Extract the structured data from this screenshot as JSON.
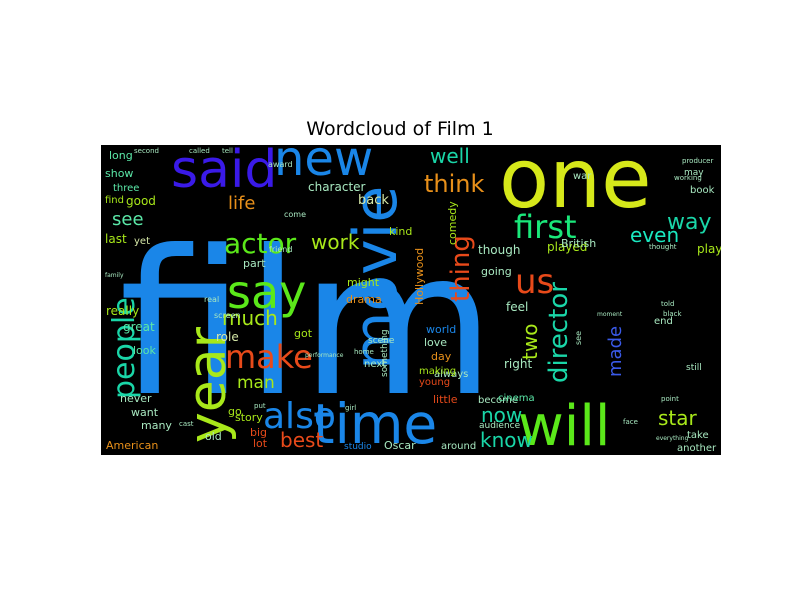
{
  "chart_data": {
    "type": "wordcloud",
    "title": "Wordcloud of Film 1",
    "background": "#000000",
    "words": [
      {
        "text": "film",
        "weight": 1.0,
        "color": "#1a86e8"
      },
      {
        "text": "one",
        "weight": 0.62,
        "color": "#d6e81a"
      },
      {
        "text": "movie",
        "weight": 0.48,
        "color": "#1a86e8"
      },
      {
        "text": "time",
        "weight": 0.45,
        "color": "#1a86e8"
      },
      {
        "text": "will",
        "weight": 0.43,
        "color": "#5be81a"
      },
      {
        "text": "year",
        "weight": 0.42,
        "color": "#a8e81a"
      },
      {
        "text": "said",
        "weight": 0.38,
        "color": "#3a1ae8"
      },
      {
        "text": "new",
        "weight": 0.36,
        "color": "#1a86e8"
      },
      {
        "text": "say",
        "weight": 0.33,
        "color": "#5be81a"
      },
      {
        "text": "also",
        "weight": 0.3,
        "color": "#1a86e8"
      },
      {
        "text": "make",
        "weight": 0.27,
        "color": "#e84a1a"
      },
      {
        "text": "first",
        "weight": 0.26,
        "color": "#1ae87a"
      },
      {
        "text": "us",
        "weight": 0.25,
        "color": "#e84a1a"
      },
      {
        "text": "actor",
        "weight": 0.24,
        "color": "#5be81a"
      },
      {
        "text": "people",
        "weight": 0.24,
        "color": "#1ad6a8"
      },
      {
        "text": "director",
        "weight": 0.22,
        "color": "#1ad6a8"
      },
      {
        "text": "thing",
        "weight": 0.2,
        "color": "#e84a1a"
      },
      {
        "text": "think",
        "weight": 0.19,
        "color": "#e8901a"
      },
      {
        "text": "best",
        "weight": 0.18,
        "color": "#e84a1a"
      },
      {
        "text": "life",
        "weight": 0.17,
        "color": "#e8901a"
      },
      {
        "text": "work",
        "weight": 0.17,
        "color": "#a8e81a"
      },
      {
        "text": "much",
        "weight": 0.17,
        "color": "#a8e81a"
      },
      {
        "text": "well",
        "weight": 0.17,
        "color": "#1ad6a8"
      },
      {
        "text": "way",
        "weight": 0.17,
        "color": "#1ad6a8"
      },
      {
        "text": "even",
        "weight": 0.16,
        "color": "#1ae8c0"
      },
      {
        "text": "two",
        "weight": 0.16,
        "color": "#a8e81a"
      },
      {
        "text": "made",
        "weight": 0.15,
        "color": "#3a5ae8"
      },
      {
        "text": "know",
        "weight": 0.15,
        "color": "#1ad6a8"
      },
      {
        "text": "now",
        "weight": 0.15,
        "color": "#1ad6a8"
      },
      {
        "text": "star",
        "weight": 0.15,
        "color": "#a8e81a"
      },
      {
        "text": "man",
        "weight": 0.14,
        "color": "#a8e81a"
      },
      {
        "text": "see",
        "weight": 0.14,
        "color": "#5be8a8"
      },
      {
        "text": "character",
        "weight": 0.1,
        "color": "#a8e8c0"
      },
      {
        "text": "back",
        "weight": 0.1,
        "color": "#d6e8a8"
      },
      {
        "text": "really",
        "weight": 0.1,
        "color": "#a8e81a"
      },
      {
        "text": "great",
        "weight": 0.1,
        "color": "#5be8a8"
      },
      {
        "text": "look",
        "weight": 0.1,
        "color": "#5be8a8"
      },
      {
        "text": "role",
        "weight": 0.1,
        "color": "#d6e8a8"
      },
      {
        "text": "good",
        "weight": 0.1,
        "color": "#a8e81a"
      },
      {
        "text": "last",
        "weight": 0.1,
        "color": "#a8e81a"
      },
      {
        "text": "long",
        "weight": 0.1,
        "color": "#5be8a8"
      },
      {
        "text": "show",
        "weight": 0.1,
        "color": "#5be8a8"
      },
      {
        "text": "three",
        "weight": 0.09,
        "color": "#5be8a8"
      },
      {
        "text": "find",
        "weight": 0.09,
        "color": "#a8e81a"
      },
      {
        "text": "yet",
        "weight": 0.09,
        "color": "#d6e8a8"
      },
      {
        "text": "part",
        "weight": 0.09,
        "color": "#a8e8c0"
      },
      {
        "text": "got",
        "weight": 0.09,
        "color": "#a8e81a"
      },
      {
        "text": "might",
        "weight": 0.09,
        "color": "#a8e81a"
      },
      {
        "text": "drama",
        "weight": 0.09,
        "color": "#e8901a"
      },
      {
        "text": "kind",
        "weight": 0.09,
        "color": "#a8e81a"
      },
      {
        "text": "though",
        "weight": 0.09,
        "color": "#a8e8c0"
      },
      {
        "text": "going",
        "weight": 0.09,
        "color": "#a8e8c0"
      },
      {
        "text": "feel",
        "weight": 0.09,
        "color": "#a8e8c0"
      },
      {
        "text": "played",
        "weight": 0.09,
        "color": "#a8e81a"
      },
      {
        "text": "play",
        "weight": 0.09,
        "color": "#a8e81a"
      },
      {
        "text": "British",
        "weight": 0.08,
        "color": "#a8e8c0"
      },
      {
        "text": "Hollywood",
        "weight": 0.08,
        "color": "#e8901a"
      },
      {
        "text": "comedy",
        "weight": 0.08,
        "color": "#a8e81a"
      },
      {
        "text": "world",
        "weight": 0.08,
        "color": "#1a86e8"
      },
      {
        "text": "love",
        "weight": 0.08,
        "color": "#a8e8c0"
      },
      {
        "text": "day",
        "weight": 0.08,
        "color": "#e8901a"
      },
      {
        "text": "right",
        "weight": 0.08,
        "color": "#a8e8c0"
      },
      {
        "text": "never",
        "weight": 0.08,
        "color": "#a8e8c0"
      },
      {
        "text": "want",
        "weight": 0.08,
        "color": "#a8e8c0"
      },
      {
        "text": "many",
        "weight": 0.08,
        "color": "#a8e8c0"
      },
      {
        "text": "story",
        "weight": 0.08,
        "color": "#a8e81a"
      },
      {
        "text": "go",
        "weight": 0.08,
        "color": "#a8e81a"
      },
      {
        "text": "old",
        "weight": 0.08,
        "color": "#a8e8c0"
      },
      {
        "text": "big",
        "weight": 0.08,
        "color": "#e84a1a"
      },
      {
        "text": "lot",
        "weight": 0.08,
        "color": "#e84a1a"
      },
      {
        "text": "American",
        "weight": 0.08,
        "color": "#e8901a"
      },
      {
        "text": "Oscar",
        "weight": 0.08,
        "color": "#a8e8c0"
      },
      {
        "text": "around",
        "weight": 0.08,
        "color": "#a8e8c0"
      },
      {
        "text": "little",
        "weight": 0.08,
        "color": "#e84a1a"
      },
      {
        "text": "become",
        "weight": 0.08,
        "color": "#a8e8c0"
      },
      {
        "text": "cinema",
        "weight": 0.08,
        "color": "#5be8a8"
      },
      {
        "text": "audience",
        "weight": 0.07,
        "color": "#a8e8c0"
      },
      {
        "text": "studio",
        "weight": 0.07,
        "color": "#1a86e8"
      },
      {
        "text": "always",
        "weight": 0.08,
        "color": "#a8e8c0"
      },
      {
        "text": "making",
        "weight": 0.08,
        "color": "#a8e81a"
      },
      {
        "text": "young",
        "weight": 0.08,
        "color": "#e84a1a"
      },
      {
        "text": "next",
        "weight": 0.08,
        "color": "#a8e8c0"
      },
      {
        "text": "take",
        "weight": 0.08,
        "color": "#a8e8c0"
      },
      {
        "text": "another",
        "weight": 0.08,
        "color": "#a8e8c0"
      },
      {
        "text": "end",
        "weight": 0.07,
        "color": "#a8e8c0"
      },
      {
        "text": "book",
        "weight": 0.07,
        "color": "#a8e8c0"
      },
      {
        "text": "war",
        "weight": 0.07,
        "color": "#a8e8c0"
      },
      {
        "text": "may",
        "weight": 0.07,
        "color": "#a8e8c0"
      },
      {
        "text": "award",
        "weight": 0.06,
        "color": "#a8e8c0"
      },
      {
        "text": "come",
        "weight": 0.06,
        "color": "#a8e8c0"
      },
      {
        "text": "still",
        "weight": 0.06,
        "color": "#a8e8c0"
      },
      {
        "text": "scene",
        "weight": 0.06,
        "color": "#a8e8c0"
      },
      {
        "text": "something",
        "weight": 0.06,
        "color": "#a8e8c0"
      },
      {
        "text": "real",
        "weight": 0.06,
        "color": "#a8e8c0"
      },
      {
        "text": "screen",
        "weight": 0.06,
        "color": "#a8e8c0"
      },
      {
        "text": "see",
        "weight": 0.06,
        "color": "#a8e8c0"
      },
      {
        "text": "friend",
        "weight": 0.05,
        "color": "#a8e8c0"
      },
      {
        "text": "second",
        "weight": 0.05,
        "color": "#a8e8c0"
      },
      {
        "text": "called",
        "weight": 0.05,
        "color": "#a8e8c0"
      },
      {
        "text": "tell",
        "weight": 0.05,
        "color": "#a8e8c0"
      },
      {
        "text": "producer",
        "weight": 0.05,
        "color": "#a8e8c0"
      },
      {
        "text": "thought",
        "weight": 0.05,
        "color": "#a8e8c0"
      },
      {
        "text": "told",
        "weight": 0.05,
        "color": "#a8e8c0"
      },
      {
        "text": "black",
        "weight": 0.05,
        "color": "#a8e8c0"
      },
      {
        "text": "point",
        "weight": 0.05,
        "color": "#a8e8c0"
      },
      {
        "text": "face",
        "weight": 0.05,
        "color": "#a8e8c0"
      },
      {
        "text": "cast",
        "weight": 0.05,
        "color": "#a8e8c0"
      },
      {
        "text": "girl",
        "weight": 0.05,
        "color": "#a8e8c0"
      },
      {
        "text": "performance",
        "weight": 0.05,
        "color": "#a8e8c0"
      },
      {
        "text": "everything",
        "weight": 0.05,
        "color": "#a8e8c0"
      },
      {
        "text": "moment",
        "weight": 0.05,
        "color": "#a8e8c0"
      },
      {
        "text": "family",
        "weight": 0.05,
        "color": "#a8e8c0"
      },
      {
        "text": "home",
        "weight": 0.05,
        "color": "#a8e8c0"
      },
      {
        "text": "working",
        "weight": 0.05,
        "color": "#a8e8c0"
      },
      {
        "text": "put",
        "weight": 0.05,
        "color": "#a8e8c0"
      }
    ]
  }
}
